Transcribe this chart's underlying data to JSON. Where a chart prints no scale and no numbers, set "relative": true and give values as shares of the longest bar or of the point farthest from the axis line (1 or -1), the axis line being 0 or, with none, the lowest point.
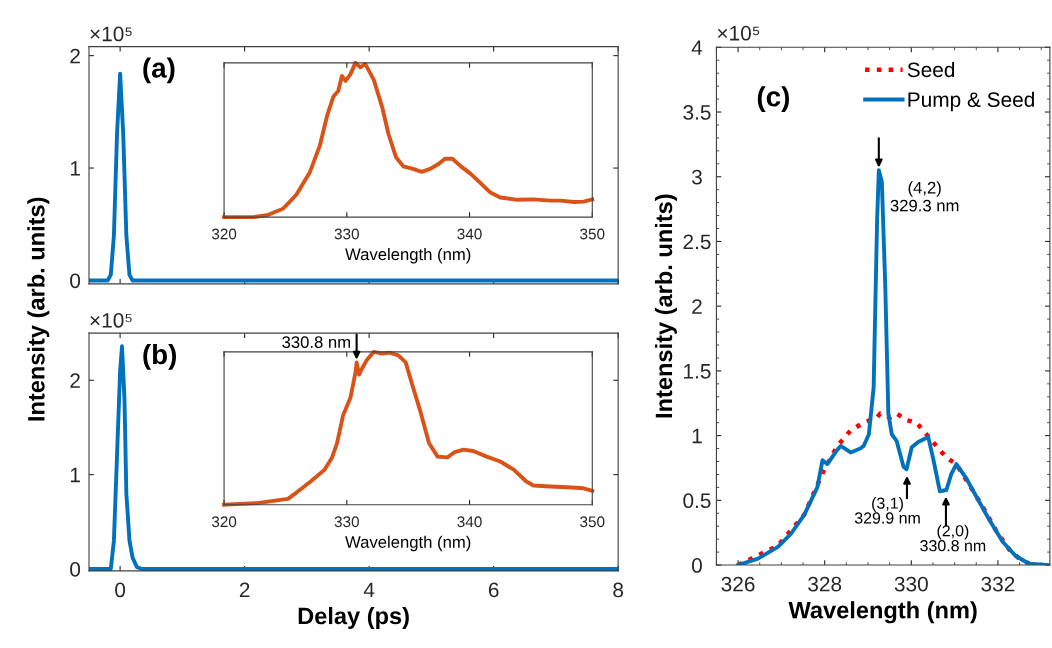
{
  "chart_data": [
    {
      "type": "line",
      "title": "(a)",
      "annotations": [
        "×10⁵"
      ],
      "xlim": [
        -0.5,
        8
      ],
      "xticks": [
        0,
        2,
        4,
        6,
        8
      ],
      "ylim": [
        -0.03,
        2.08
      ],
      "yticks": [
        0,
        1,
        2
      ],
      "tick_labels": "y",
      "grid": false,
      "marker": "none",
      "line_style": "solid",
      "series": [
        {
          "color": "#0072bd",
          "x": [
            -0.5,
            -0.2,
            -0.15,
            -0.1,
            -0.05,
            0,
            0.05,
            0.1,
            0.15,
            0.2,
            8
          ],
          "values": [
            0,
            0,
            0.05,
            0.4,
            1.3,
            1.84,
            1.3,
            0.4,
            0.05,
            0,
            0
          ]
        }
      ]
    },
    {
      "type": "line",
      "relative": true,
      "xlabel": "Wavelength (nm)",
      "xlim": [
        320,
        350
      ],
      "xticks": [
        320,
        330,
        340,
        350
      ],
      "grid": false,
      "marker": "none",
      "line_style": "solid",
      "series": [
        {
          "color": "#d95319",
          "x": [
            320,
            322.4,
            323.5,
            324.8,
            325.9,
            327.0,
            327.8,
            328.4,
            328.9,
            329.3,
            329.6,
            329.9,
            330.3,
            330.7,
            331.1,
            331.5,
            332.2,
            332.9,
            333.4,
            334.0,
            334.6,
            335.4,
            336.1,
            336.8,
            337.5,
            338.0,
            338.6,
            339.3,
            340.1,
            340.9,
            341.7,
            342.5,
            343.9,
            345.2,
            346.6,
            347.4,
            348.5,
            349.3,
            350
          ],
          "values": [
            0,
            0,
            0.012,
            0.054,
            0.146,
            0.293,
            0.463,
            0.659,
            0.78,
            0.817,
            0.915,
            0.883,
            0.927,
            1,
            0.971,
            0.993,
            0.89,
            0.707,
            0.537,
            0.39,
            0.329,
            0.312,
            0.293,
            0.312,
            0.346,
            0.378,
            0.378,
            0.329,
            0.28,
            0.22,
            0.159,
            0.127,
            0.112,
            0.115,
            0.107,
            0.107,
            0.098,
            0.1,
            0.115
          ]
        }
      ]
    },
    {
      "type": "line",
      "title": "(b)",
      "ylabel": "Intensity (arb. units)",
      "xlabel": "Delay (ps)",
      "annotations": [
        "×10⁵"
      ],
      "xlim": [
        -0.5,
        8
      ],
      "xticks": [
        0,
        2,
        4,
        6,
        8
      ],
      "ylim": [
        -0.02,
        2.5
      ],
      "yticks": [
        0,
        1,
        2
      ],
      "grid": false,
      "marker": "none",
      "line_style": "solid",
      "series": [
        {
          "color": "#0072bd",
          "x": [
            -0.5,
            -0.15,
            -0.1,
            -0.05,
            0,
            0.03,
            0.07,
            0.1,
            0.15,
            0.2,
            0.27,
            0.35,
            8
          ],
          "values": [
            0,
            0,
            0.3,
            1.2,
            2.1,
            2.36,
            1.8,
            0.8,
            0.3,
            0.12,
            0.02,
            0,
            0
          ]
        }
      ]
    },
    {
      "type": "line",
      "relative": true,
      "xlabel": "Wavelength (nm)",
      "xlim": [
        320,
        350
      ],
      "xticks": [
        320,
        330,
        340,
        350
      ],
      "grid": false,
      "marker": "none",
      "line_style": "solid",
      "annotations": [
        {
          "text": "330.8 nm",
          "x": 330.8,
          "y": 0.931
        }
      ],
      "series": [
        {
          "color": "#d95319",
          "x": [
            320,
            322.7,
            325.2,
            325.9,
            327.0,
            328.2,
            328.8,
            329.2,
            329.7,
            330.3,
            330.7,
            330.8,
            331.0,
            331.2,
            331.6,
            332.2,
            332.9,
            333.5,
            334.2,
            334.8,
            335.3,
            336.0,
            336.7,
            337.4,
            338.2,
            338.8,
            339.5,
            340.3,
            341.4,
            342.5,
            343.6,
            344.6,
            345.2,
            346.6,
            347.96,
            349.3,
            350
          ],
          "values": [
            0,
            0.011,
            0.039,
            0.08,
            0.149,
            0.23,
            0.31,
            0.402,
            0.586,
            0.701,
            0.862,
            0.931,
            0.851,
            0.885,
            0.943,
            1,
            0.989,
            0.995,
            0.977,
            0.931,
            0.793,
            0.609,
            0.402,
            0.315,
            0.31,
            0.345,
            0.361,
            0.352,
            0.315,
            0.283,
            0.23,
            0.154,
            0.126,
            0.12,
            0.115,
            0.108,
            0.092
          ]
        }
      ]
    },
    {
      "type": "line",
      "title": "(c)",
      "xlabel": "Wavelength (nm)",
      "ylabel": "Intensity (arb. units)",
      "xlim": [
        325.5,
        333.2
      ],
      "xticks": [
        326,
        328,
        330,
        332
      ],
      "ylim": [
        0,
        4
      ],
      "yticks": [
        0,
        0.5,
        1,
        1.5,
        2,
        2.5,
        3,
        3.5,
        4
      ],
      "grid": false,
      "legend": "top right",
      "marker": "none",
      "annotations": [
        "×10⁵",
        {
          "text": "(4,2)\n329.3 nm",
          "x": 329.25,
          "y": 3.05
        },
        {
          "text": "(3,1)\n329.9 nm",
          "x": 329.9,
          "y": 0.74
        },
        {
          "text": "(2,0)\n330.8 nm",
          "x": 330.8,
          "y": 0.58
        }
      ],
      "series": [
        {
          "name": "Seed",
          "color": "#ff0000",
          "line_style": "dotted",
          "x": [
            326.0,
            326.92,
            327.53,
            327.98,
            328.29,
            328.6,
            328.9,
            329.21,
            329.28,
            329.51,
            329.66,
            329.89,
            330.12,
            330.35,
            330.58,
            330.81,
            331.04,
            331.34,
            331.65,
            331.95,
            332.26,
            332.56,
            332.87
          ],
          "values": [
            0,
            0.15,
            0.39,
            0.73,
            0.92,
            1.04,
            1.1,
            1.14,
            1.17,
            1.14,
            1.17,
            1.12,
            1.1,
            1.01,
            0.92,
            0.83,
            0.78,
            0.62,
            0.45,
            0.27,
            0.12,
            0.03,
            0
          ]
        },
        {
          "name": "Pump & Seed",
          "color": "#0072bd",
          "line_style": "solid",
          "x": [
            326.0,
            326.46,
            326.92,
            327.22,
            327.53,
            327.83,
            327.95,
            328.06,
            328.29,
            328.37,
            328.6,
            328.82,
            328.9,
            329.02,
            329.13,
            329.21,
            329.25,
            329.32,
            329.4,
            329.47,
            329.55,
            329.66,
            329.82,
            329.89,
            330.01,
            330.16,
            330.39,
            330.5,
            330.66,
            330.81,
            330.92,
            331.04,
            331.27,
            331.5,
            331.8,
            332.11,
            332.41,
            332.72,
            333.15
          ],
          "values": [
            0,
            0.05,
            0.14,
            0.24,
            0.39,
            0.6,
            0.81,
            0.78,
            0.89,
            0.92,
            0.87,
            0.9,
            0.92,
            1.01,
            1.37,
            2.66,
            3.05,
            2.96,
            2.14,
            1.17,
            1.01,
            0.96,
            0.76,
            0.74,
            0.91,
            0.95,
            0.99,
            0.83,
            0.57,
            0.58,
            0.7,
            0.78,
            0.67,
            0.53,
            0.35,
            0.18,
            0.07,
            0.01,
            0
          ]
        }
      ]
    }
  ]
}
